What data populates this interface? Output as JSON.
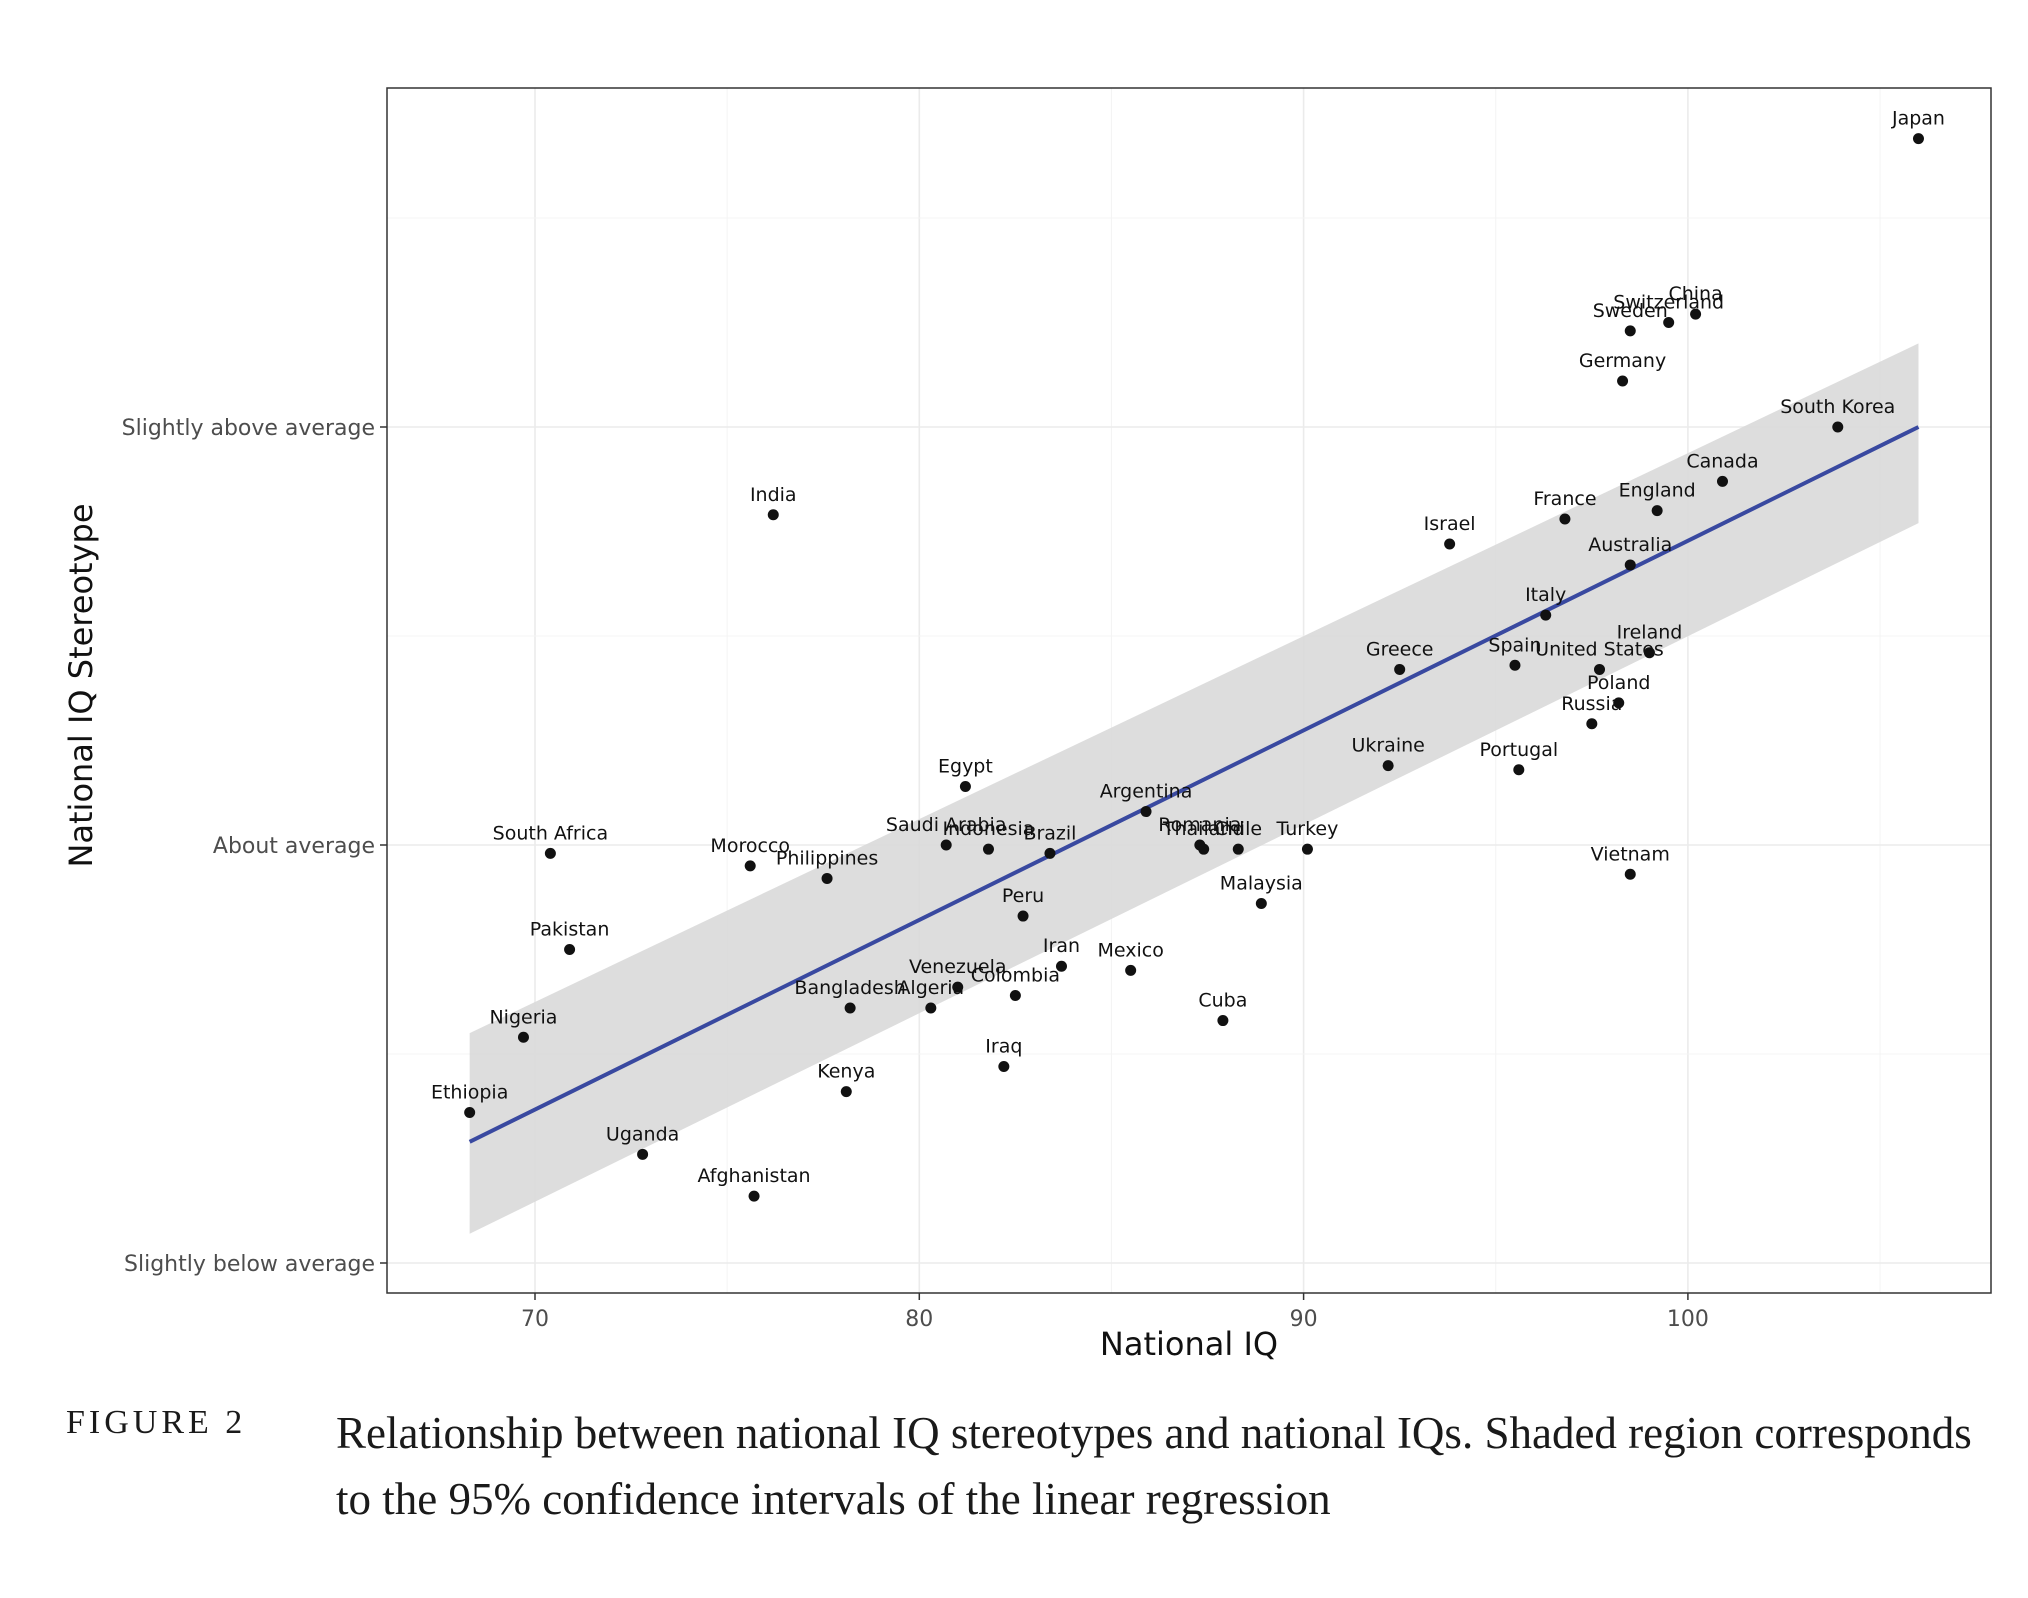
{
  "chart_data": {
    "type": "scatter",
    "xlabel": "National IQ",
    "ylabel": "National IQ Stereotype",
    "xlim": [
      66.3,
      108
    ],
    "ylim": [
      0.93,
      3.81
    ],
    "x_ticks": [
      70,
      80,
      90,
      100
    ],
    "y_ticks": [
      {
        "value": 1,
        "label": "Slightly below average"
      },
      {
        "value": 2,
        "label": "About average"
      },
      {
        "value": 3,
        "label": "Slightly above average"
      }
    ],
    "grid": true,
    "regression": {
      "x_range": [
        68.3,
        106
      ],
      "y_range": [
        1.29,
        3.0
      ],
      "ci_start": [
        1.07,
        1.55
      ],
      "ci_end": [
        2.77,
        3.2
      ],
      "line_color": "#3949a0",
      "band_color": "#d9d9d9"
    },
    "points": [
      {
        "label": "Japan",
        "x": 106,
        "y": 3.69
      },
      {
        "label": "China",
        "x": 100.2,
        "y": 3.27
      },
      {
        "label": "Switzerland",
        "x": 99.5,
        "y": 3.25
      },
      {
        "label": "Sweden",
        "x": 98.5,
        "y": 3.23
      },
      {
        "label": "Germany",
        "x": 98.3,
        "y": 3.11
      },
      {
        "label": "South Korea",
        "x": 103.9,
        "y": 3.0
      },
      {
        "label": "Canada",
        "x": 100.9,
        "y": 2.87
      },
      {
        "label": "England",
        "x": 99.2,
        "y": 2.8
      },
      {
        "label": "France",
        "x": 96.8,
        "y": 2.78
      },
      {
        "label": "Israel",
        "x": 93.8,
        "y": 2.72
      },
      {
        "label": "India",
        "x": 76.2,
        "y": 2.79
      },
      {
        "label": "Australia",
        "x": 98.5,
        "y": 2.67
      },
      {
        "label": "Italy",
        "x": 96.3,
        "y": 2.55
      },
      {
        "label": "Ireland",
        "x": 99,
        "y": 2.46
      },
      {
        "label": "Spain",
        "x": 95.5,
        "y": 2.43
      },
      {
        "label": "United States",
        "x": 97.7,
        "y": 2.42
      },
      {
        "label": "Greece",
        "x": 92.5,
        "y": 2.42
      },
      {
        "label": "Poland",
        "x": 98.2,
        "y": 2.34
      },
      {
        "label": "Russia",
        "x": 97.5,
        "y": 2.29
      },
      {
        "label": "Ukraine",
        "x": 92.2,
        "y": 2.19
      },
      {
        "label": "Portugal",
        "x": 95.6,
        "y": 2.18
      },
      {
        "label": "Egypt",
        "x": 81.2,
        "y": 2.14
      },
      {
        "label": "Argentina",
        "x": 85.9,
        "y": 2.08
      },
      {
        "label": "Romania",
        "x": 87.3,
        "y": 2.0
      },
      {
        "label": "Thailand",
        "x": 87.4,
        "y": 1.99
      },
      {
        "label": "Chile",
        "x": 88.3,
        "y": 1.99
      },
      {
        "label": "Turkey",
        "x": 90.1,
        "y": 1.99
      },
      {
        "label": "Saudi Arabia",
        "x": 80.7,
        "y": 2.0
      },
      {
        "label": "Indonesia",
        "x": 81.8,
        "y": 1.99
      },
      {
        "label": "Brazil",
        "x": 83.4,
        "y": 1.98
      },
      {
        "label": "South Africa",
        "x": 70.4,
        "y": 1.98
      },
      {
        "label": "Morocco",
        "x": 75.6,
        "y": 1.95
      },
      {
        "label": "Philippines",
        "x": 77.6,
        "y": 1.92
      },
      {
        "label": "Vietnam",
        "x": 98.5,
        "y": 1.93
      },
      {
        "label": "Malaysia",
        "x": 88.9,
        "y": 1.86
      },
      {
        "label": "Peru",
        "x": 82.7,
        "y": 1.83
      },
      {
        "label": "Pakistan",
        "x": 70.9,
        "y": 1.75
      },
      {
        "label": "Iran",
        "x": 83.7,
        "y": 1.71
      },
      {
        "label": "Mexico",
        "x": 85.5,
        "y": 1.7
      },
      {
        "label": "Venezuela",
        "x": 81,
        "y": 1.66
      },
      {
        "label": "Colombia",
        "x": 82.5,
        "y": 1.64
      },
      {
        "label": "Bangladesh",
        "x": 78.2,
        "y": 1.61
      },
      {
        "label": "Algeria",
        "x": 80.3,
        "y": 1.61
      },
      {
        "label": "Cuba",
        "x": 87.9,
        "y": 1.58
      },
      {
        "label": "Nigeria",
        "x": 69.7,
        "y": 1.54
      },
      {
        "label": "Iraq",
        "x": 82.2,
        "y": 1.47
      },
      {
        "label": "Kenya",
        "x": 78.1,
        "y": 1.41
      },
      {
        "label": "Ethiopia",
        "x": 68.3,
        "y": 1.36
      },
      {
        "label": "Uganda",
        "x": 72.8,
        "y": 1.26
      },
      {
        "label": "Afghanistan",
        "x": 75.7,
        "y": 1.16
      }
    ]
  },
  "caption": {
    "label": "FIGURE 2",
    "text": "Relationship between national IQ stereotypes and national IQs. Shaded region corresponds to the 95% confidence intervals of the linear regression"
  }
}
